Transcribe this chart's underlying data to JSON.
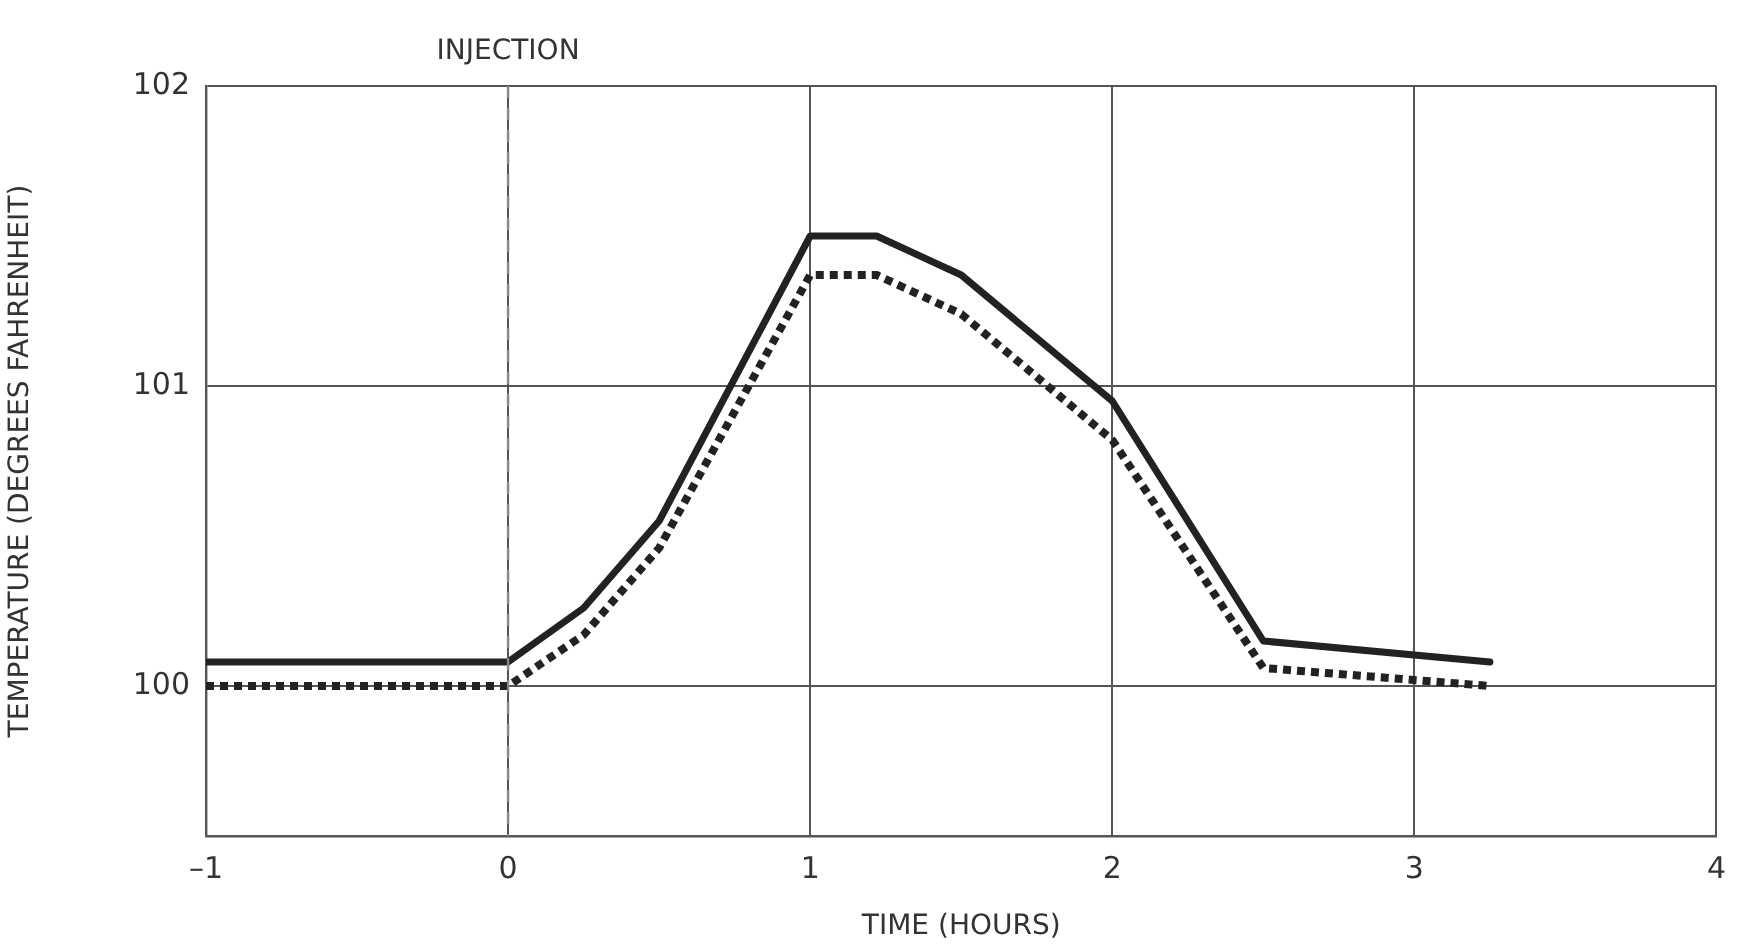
{
  "chart_data": {
    "type": "line",
    "xlabel": "TIME (HOURS)",
    "ylabel": "TEMPERATURE (DEGREES FAHRENHEIT)",
    "xlim": [
      -1,
      4
    ],
    "xticks": [
      {
        "value": -1,
        "label": "–1"
      },
      0,
      1,
      2,
      3,
      4
    ],
    "ylim": [
      99.5,
      102
    ],
    "yticks": [
      100,
      101,
      102
    ],
    "grid": true,
    "marker": "none",
    "series": [
      {
        "color": "#222222",
        "line_style": "solid",
        "x": [
          -1,
          0,
          0.25,
          0.5,
          1,
          1.22,
          1.5,
          2,
          2.5,
          3.25
        ],
        "values": [
          100.08,
          100.08,
          100.26,
          100.55,
          101.5,
          101.5,
          101.37,
          100.95,
          100.15,
          100.08
        ]
      },
      {
        "color": "#222222",
        "line_style": "dotted",
        "x": [
          -1,
          0,
          0.25,
          0.5,
          1,
          1.22,
          1.5,
          2,
          2.5,
          3.25
        ],
        "values": [
          100,
          100,
          100.17,
          100.46,
          101.37,
          101.37,
          101.24,
          100.82,
          100.06,
          100
        ]
      }
    ],
    "ref_lines": [
      {
        "axis": "x",
        "value": 0,
        "label": "INJECTION",
        "color": "#888888",
        "line_style": "dashed"
      }
    ]
  }
}
